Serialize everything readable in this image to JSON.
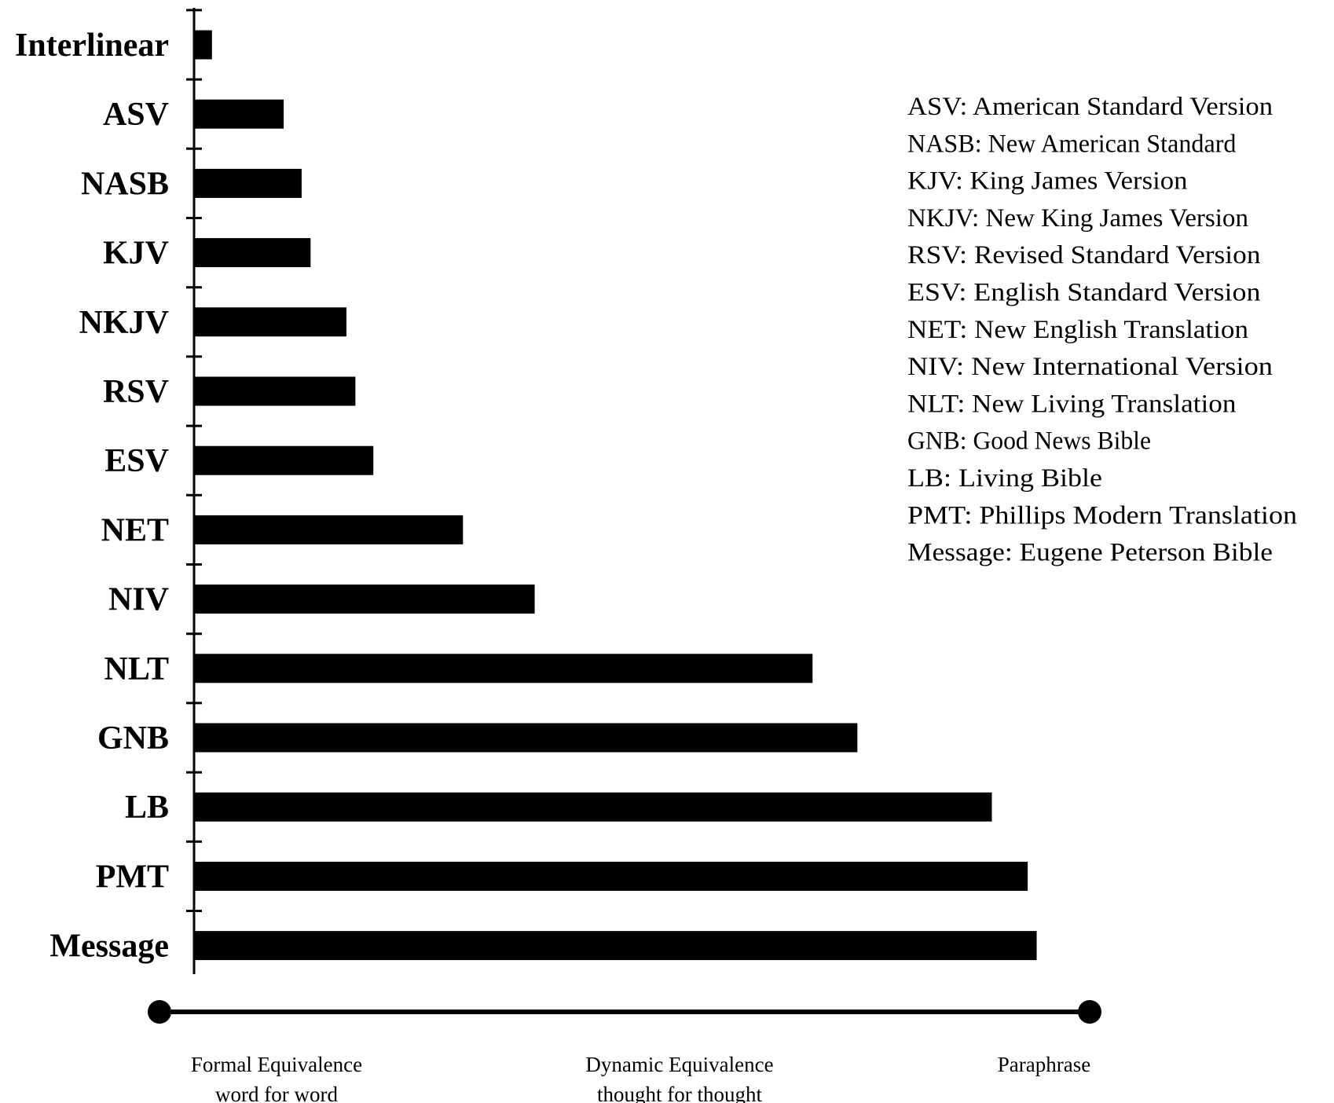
{
  "chart_data": {
    "type": "bar",
    "orientation": "horizontal",
    "categories": [
      "Interlinear",
      "ASV",
      "NASB",
      "KJV",
      "NKJV",
      "RSV",
      "ESV",
      "NET",
      "NIV",
      "NLT",
      "GNB",
      "LB",
      "PMT",
      "Message"
    ],
    "values": [
      2,
      10,
      12,
      13,
      17,
      18,
      20,
      30,
      38,
      69,
      74,
      89,
      93,
      94
    ],
    "xlim": [
      0,
      100
    ],
    "grid": false,
    "bar_color": "#000000",
    "legend_placement": "top-right",
    "legend": [
      "ASV: American Standard Version",
      "NASB: New American Standard",
      "KJV: King James Version",
      "NKJV: New King James Version",
      "RSV: Revised Standard Version",
      "ESV: English Standard Version",
      "NET: New English Translation",
      "NIV: New International Version",
      "NLT: New Living Translation",
      "GNB: Good News Bible",
      "LB: Living Bible",
      "PMT: Phillips Modern Translation",
      "Message: Eugene Peterson Bible"
    ],
    "scale_labels": [
      {
        "lines": [
          "Formal Equivalence",
          "word for word"
        ],
        "position": "left"
      },
      {
        "lines": [
          "Dynamic Equivalence",
          "thought for thought"
        ],
        "position": "center"
      },
      {
        "lines": [
          "Paraphrase"
        ],
        "position": "right"
      }
    ]
  }
}
